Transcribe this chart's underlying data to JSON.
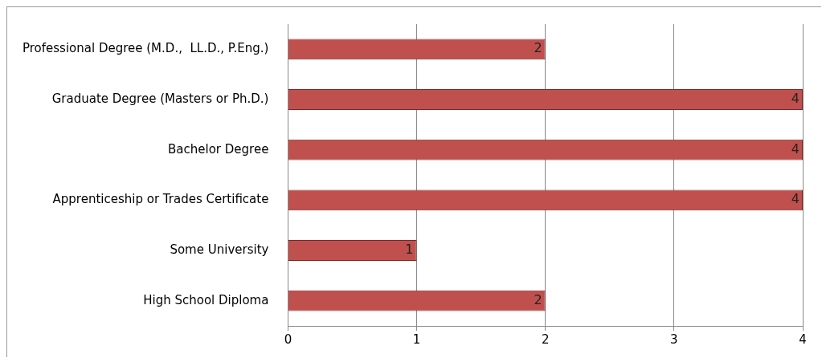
{
  "chart_data": {
    "type": "bar",
    "orientation": "horizontal",
    "categories": [
      "Professional Degree (M.D.,  LL.D., P.Eng.)",
      "Graduate Degree (Masters or Ph.D.)",
      "Bachelor Degree",
      "Apprenticeship or Trades Certificate",
      "Some University",
      "High School Diploma"
    ],
    "values": [
      2,
      4,
      4,
      4,
      1,
      2
    ],
    "color": "#c0504d",
    "xlim": [
      0,
      4
    ],
    "xticks": [
      0,
      1,
      2,
      3,
      4
    ],
    "grid": "x",
    "legend": false,
    "data_labels": true
  }
}
